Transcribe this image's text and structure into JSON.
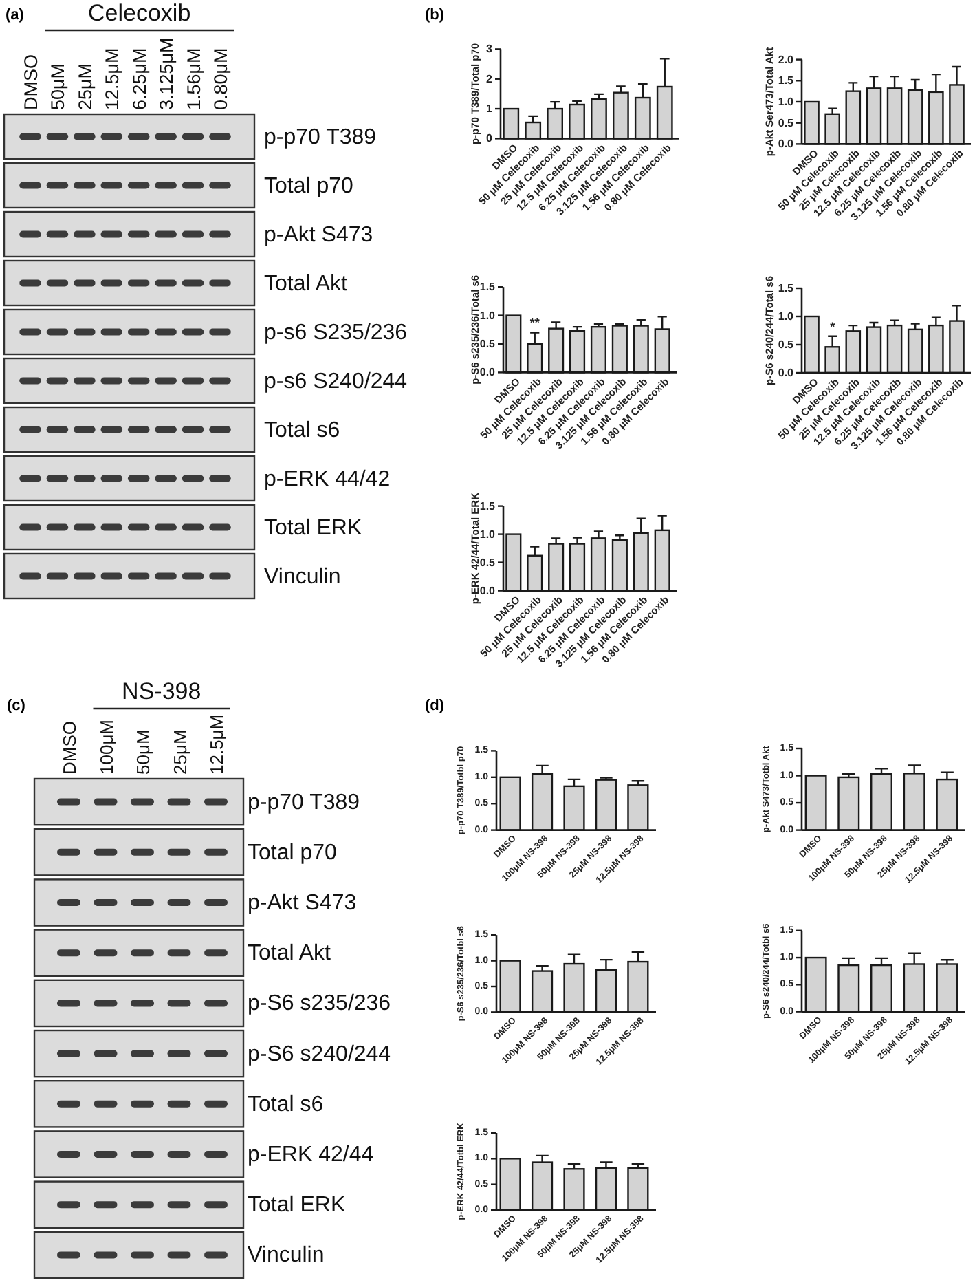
{
  "chart_data": [
    {
      "type": "other",
      "title": "(a)",
      "subtitle": "Celecoxib",
      "categories": [
        "DMSO",
        "50μM",
        "25μM",
        "12.5μM",
        "6.25μM",
        "3.125μM",
        "1.56μM",
        "0.80μM"
      ],
      "annotations": [
        "p-p70 T389",
        "Total p70",
        "p-Akt S473",
        "Total Akt",
        "p-s6 S235/236",
        "p-s6 S240/244",
        "Total s6",
        "p-ERK 44/42",
        "Total ERK",
        "Vinculin"
      ]
    },
    {
      "type": "bar",
      "title": "(b)",
      "ylabel": "p-p70 T389/Total p70",
      "categories": [
        "DMSO",
        "50 μM Celecoxib",
        "25 μM Celecoxib",
        "12.5 μM Celecoxib",
        "6.25 μM Celecoxib",
        "3.125 μM Celecoxib",
        "1.56 μM Celecoxib",
        "0.80 μM Celecoxib"
      ],
      "values": [
        1.0,
        0.54,
        1.0,
        1.14,
        1.32,
        1.54,
        1.37,
        1.74
      ],
      "errors": [
        null,
        [
          0.54,
          0.75
        ],
        [
          1.0,
          1.23
        ],
        [
          1.14,
          1.26
        ],
        [
          1.32,
          1.49
        ],
        [
          1.54,
          1.75
        ],
        [
          1.37,
          1.83
        ],
        [
          1.74,
          2.68
        ]
      ],
      "color": "#d3d3d3",
      "ylim": [
        0,
        3
      ],
      "yticks": [
        0,
        1,
        2,
        3
      ]
    },
    {
      "type": "bar",
      "ylabel": "p-Akt Ser473/Total Akt",
      "categories": [
        "DMSO",
        "50 μM Celecoxib",
        "25 μM Celecoxib",
        "12.5 μM Celecoxib",
        "6.25 μM Celecoxib",
        "3.125 μM Celecoxib",
        "1.56 μM Celecoxib",
        "0.80 μM Celecoxib"
      ],
      "values": [
        1.0,
        0.71,
        1.25,
        1.32,
        1.32,
        1.28,
        1.23,
        1.4
      ],
      "errors": [
        null,
        [
          0.71,
          0.84
        ],
        [
          1.25,
          1.45
        ],
        [
          1.32,
          1.6
        ],
        [
          1.32,
          1.6
        ],
        [
          1.28,
          1.52
        ],
        [
          1.23,
          1.65
        ],
        [
          1.4,
          1.83
        ]
      ],
      "color": "#d3d3d3",
      "ylim": [
        0,
        2
      ],
      "yticks": [
        {
          "value": 0,
          "label": "0.0"
        },
        {
          "value": 0.5,
          "label": "0.5"
        },
        {
          "value": 1,
          "label": "1.0"
        },
        {
          "value": 1.5,
          "label": "1.5"
        },
        {
          "value": 2,
          "label": "2.0"
        }
      ]
    },
    {
      "type": "bar",
      "ylabel": "p-S6 s235/236/Total s6",
      "categories": [
        "DMSO",
        "50 μM Celecoxib",
        "25 μM Celecoxib",
        "12.5 μM Celecoxib",
        "6.25 μM Celecoxib",
        "3.125 μM Celecoxib",
        "1.56 μM Celecoxib",
        "0.80 μM Celecoxib"
      ],
      "values": [
        1.0,
        0.5,
        0.77,
        0.73,
        0.8,
        0.82,
        0.82,
        0.76
      ],
      "errors": [
        null,
        [
          0.5,
          0.7
        ],
        [
          0.77,
          0.88
        ],
        [
          0.73,
          0.8
        ],
        [
          0.8,
          0.85
        ],
        [
          0.82,
          0.85
        ],
        [
          0.82,
          0.92
        ],
        [
          0.76,
          0.98
        ]
      ],
      "annotations": [
        {
          "text": "**",
          "x": "50 μM Celecoxib",
          "y": 0.7
        }
      ],
      "color": "#d3d3d3",
      "ylim": [
        0,
        1.5
      ],
      "yticks": [
        {
          "value": 0,
          "label": "0.0"
        },
        {
          "value": 0.5,
          "label": "0.5"
        },
        {
          "value": 1,
          "label": "1.0"
        },
        {
          "value": 1.5,
          "label": "1.5"
        }
      ]
    },
    {
      "type": "bar",
      "ylabel": "p-S6 s240/244/Total s6",
      "categories": [
        "DMSO",
        "50 μM Celecoxib",
        "25 μM Celecoxib",
        "12.5 μM Celecoxib",
        "6.25 μM Celecoxib",
        "3.125 μM Celecoxib",
        "1.56 μM Celecoxib",
        "0.80 μM Celecoxib"
      ],
      "values": [
        1.0,
        0.46,
        0.74,
        0.81,
        0.84,
        0.77,
        0.84,
        0.92
      ],
      "errors": [
        null,
        [
          0.46,
          0.65
        ],
        [
          0.74,
          0.84
        ],
        [
          0.81,
          0.89
        ],
        [
          0.84,
          0.93
        ],
        [
          0.77,
          0.87
        ],
        [
          0.84,
          0.98
        ],
        [
          0.92,
          1.19
        ]
      ],
      "annotations": [
        {
          "text": "*",
          "x": "50 μM Celecoxib",
          "y": 0.65
        }
      ],
      "color": "#d3d3d3",
      "ylim": [
        0,
        1.5
      ],
      "yticks": [
        {
          "value": 0,
          "label": "0.0"
        },
        {
          "value": 0.5,
          "label": "0.5"
        },
        {
          "value": 1,
          "label": "1.0"
        },
        {
          "value": 1.5,
          "label": "1.5"
        }
      ]
    },
    {
      "type": "bar",
      "ylabel": "p-ERK 42/44/Total ERK",
      "categories": [
        "DMSO",
        "50 μM Celecoxib",
        "25 μM Celecoxib",
        "12.5 μM Celecoxib",
        "6.25 μM Celecoxib",
        "3.125 μM Celecoxib",
        "1.56 μM Celecoxib",
        "0.80 μM Celecoxib"
      ],
      "values": [
        1.0,
        0.62,
        0.83,
        0.83,
        0.93,
        0.9,
        1.02,
        1.07
      ],
      "errors": [
        null,
        [
          0.62,
          0.78
        ],
        [
          0.83,
          0.93
        ],
        [
          0.83,
          0.94
        ],
        [
          0.93,
          1.05
        ],
        [
          0.9,
          0.98
        ],
        [
          1.02,
          1.28
        ],
        [
          1.07,
          1.33
        ]
      ],
      "color": "#d3d3d3",
      "ylim": [
        0,
        1.5
      ],
      "yticks": [
        {
          "value": 0,
          "label": "0.0"
        },
        {
          "value": 0.5,
          "label": "0.5"
        },
        {
          "value": 1,
          "label": "1.0"
        },
        {
          "value": 1.5,
          "label": "1.5"
        }
      ]
    },
    {
      "type": "other",
      "title": "(c)",
      "subtitle": "NS-398",
      "categories": [
        "DMSO",
        "100μM",
        "50μM",
        "25μM",
        "12.5μM"
      ],
      "annotations": [
        "p-p70 T389",
        "Total p70",
        "p-Akt S473",
        "Total Akt",
        "p-S6 s235/236",
        "p-S6 s240/244",
        "Total s6",
        "p-ERK 42/44",
        "Total ERK",
        "Vinculin"
      ]
    },
    {
      "type": "bar",
      "title": "(d)",
      "ylabel": "p-p70 T389/Totbl p70",
      "categories": [
        "DMSO",
        "100μM NS-398",
        "50μM NS-398",
        "25μM NS-398",
        "12.5μM NS-398"
      ],
      "values": [
        1.0,
        1.06,
        0.83,
        0.95,
        0.85
      ],
      "errors": [
        null,
        [
          1.06,
          1.22
        ],
        [
          0.83,
          0.96
        ],
        [
          0.95,
          0.99
        ],
        [
          0.85,
          0.93
        ]
      ],
      "color": "#d3d3d3",
      "ylim": [
        0,
        1.5
      ],
      "yticks": [
        {
          "value": 0,
          "label": "0.0"
        },
        {
          "value": 0.5,
          "label": "0.5"
        },
        {
          "value": 1,
          "label": "1.0"
        },
        {
          "value": 1.5,
          "label": "1.5"
        }
      ]
    },
    {
      "type": "bar",
      "ylabel": "p-Akt S473/Totbl Akt",
      "categories": [
        "DMSO",
        "100μM NS-398",
        "50μM NS-398",
        "25μM NS-398",
        "12.5μM NS-398"
      ],
      "values": [
        1.0,
        0.97,
        1.03,
        1.04,
        0.93
      ],
      "errors": [
        null,
        [
          0.97,
          1.03
        ],
        [
          1.03,
          1.13
        ],
        [
          1.04,
          1.19
        ],
        [
          0.93,
          1.06
        ]
      ],
      "color": "#d3d3d3",
      "ylim": [
        0,
        1.5
      ],
      "yticks": [
        {
          "value": 0,
          "label": "0.0"
        },
        {
          "value": 0.5,
          "label": "0.5"
        },
        {
          "value": 1,
          "label": "1.0"
        },
        {
          "value": 1.5,
          "label": "1.5"
        }
      ]
    },
    {
      "type": "bar",
      "ylabel": "p-S6 s235/236/Totbl s6",
      "categories": [
        "DMSO",
        "100μM NS-398",
        "50μM NS-398",
        "25μM NS-398",
        "12.5μM NS-398"
      ],
      "values": [
        1.0,
        0.8,
        0.94,
        0.82,
        0.98
      ],
      "errors": [
        null,
        [
          0.8,
          0.9
        ],
        [
          0.94,
          1.12
        ],
        [
          0.82,
          1.02
        ],
        [
          0.98,
          1.17
        ]
      ],
      "color": "#d3d3d3",
      "ylim": [
        0,
        1.5
      ],
      "yticks": [
        {
          "value": 0,
          "label": "0.0"
        },
        {
          "value": 0.5,
          "label": "0.5"
        },
        {
          "value": 1,
          "label": "1.0"
        },
        {
          "value": 1.5,
          "label": "1.5"
        }
      ]
    },
    {
      "type": "bar",
      "ylabel": "p-S6 s240/244/Totbl s6",
      "categories": [
        "DMSO",
        "100μM NS-398",
        "50μM NS-398",
        "25μM NS-398",
        "12.5μM NS-398"
      ],
      "values": [
        1.0,
        0.86,
        0.86,
        0.88,
        0.88
      ],
      "errors": [
        null,
        [
          0.86,
          0.99
        ],
        [
          0.86,
          0.99
        ],
        [
          0.88,
          1.08
        ],
        [
          0.88,
          0.96
        ]
      ],
      "color": "#d3d3d3",
      "ylim": [
        0,
        1.5
      ],
      "yticks": [
        {
          "value": 0,
          "label": "0.0"
        },
        {
          "value": 0.5,
          "label": "0.5"
        },
        {
          "value": 1,
          "label": "1.0"
        },
        {
          "value": 1.5,
          "label": "1.5"
        }
      ]
    },
    {
      "type": "bar",
      "ylabel": "p-ERK 42/44/Totbl ERK",
      "categories": [
        "DMSO",
        "100μM NS-398",
        "50μM NS-398",
        "25μM NS-398",
        "12.5μM NS-398"
      ],
      "values": [
        1.0,
        0.93,
        0.8,
        0.82,
        0.82
      ],
      "errors": [
        null,
        [
          0.93,
          1.06
        ],
        [
          0.8,
          0.9
        ],
        [
          0.82,
          0.93
        ],
        [
          0.82,
          0.9
        ]
      ],
      "color": "#d3d3d3",
      "ylim": [
        0,
        1.5
      ],
      "yticks": [
        {
          "value": 0,
          "label": "0.0"
        },
        {
          "value": 0.5,
          "label": "0.5"
        },
        {
          "value": 1,
          "label": "1.0"
        },
        {
          "value": 1.5,
          "label": "1.5"
        }
      ]
    }
  ]
}
